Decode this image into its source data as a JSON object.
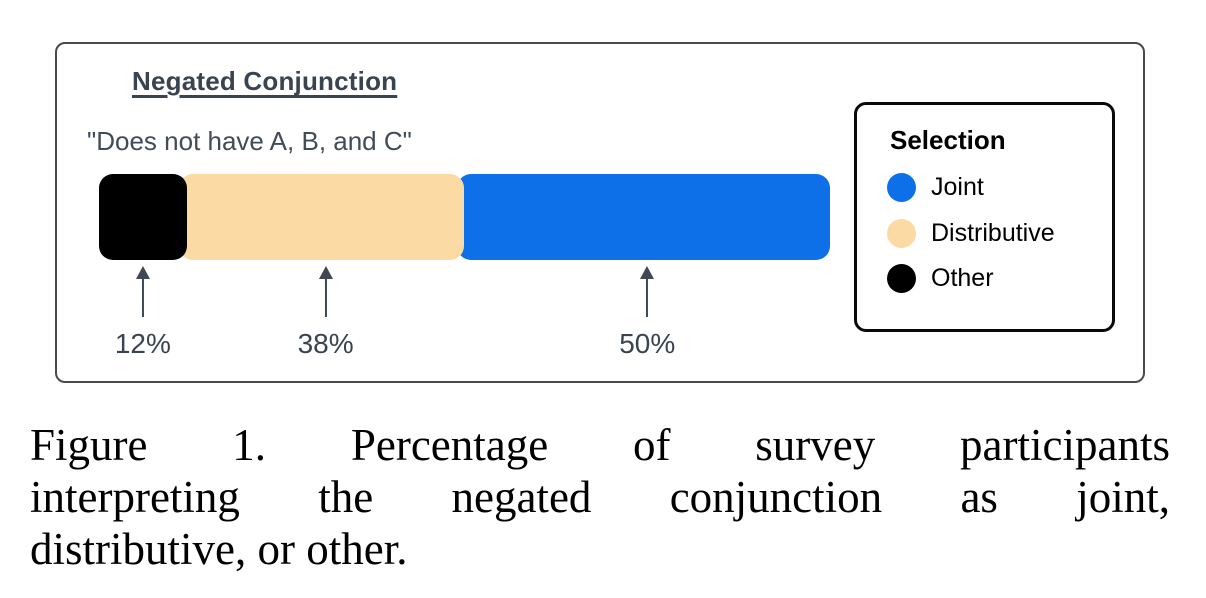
{
  "figure": {
    "title": "Negated Conjunction",
    "subtitle": "\"Does not have A, B, and C\"",
    "legend": {
      "title": "Selection",
      "items": [
        {
          "label": "Joint",
          "color": "#0e70e8"
        },
        {
          "label": "Distributive",
          "color": "#fbdba3"
        },
        {
          "label": "Other",
          "color": "#000000"
        }
      ]
    }
  },
  "chart_data": {
    "type": "bar",
    "orientation": "horizontal-stacked",
    "title": "Negated Conjunction",
    "subtitle": "\"Does not have A, B, and C\"",
    "category": "Negated Conjunction",
    "series": [
      {
        "name": "Other",
        "value": 12,
        "color": "#000000"
      },
      {
        "name": "Distributive",
        "value": 38,
        "color": "#fbdba3"
      },
      {
        "name": "Joint",
        "value": 50,
        "color": "#0e70e8"
      }
    ],
    "labels": [
      "12%",
      "38%",
      "50%"
    ],
    "legend_position": "right",
    "colors": {
      "annotation": "#3e4955",
      "text": "#3a4450"
    }
  },
  "caption": {
    "lines": [
      "Figure 1. Percentage of survey participants",
      "interpreting the negated conjunction as joint,",
      "distributive, or other."
    ]
  }
}
